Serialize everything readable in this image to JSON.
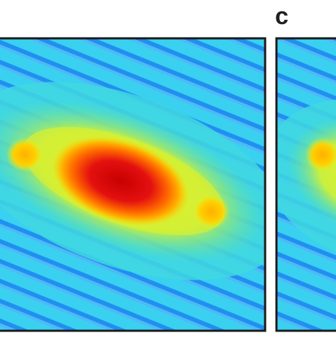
{
  "panel_label": "c"
}
